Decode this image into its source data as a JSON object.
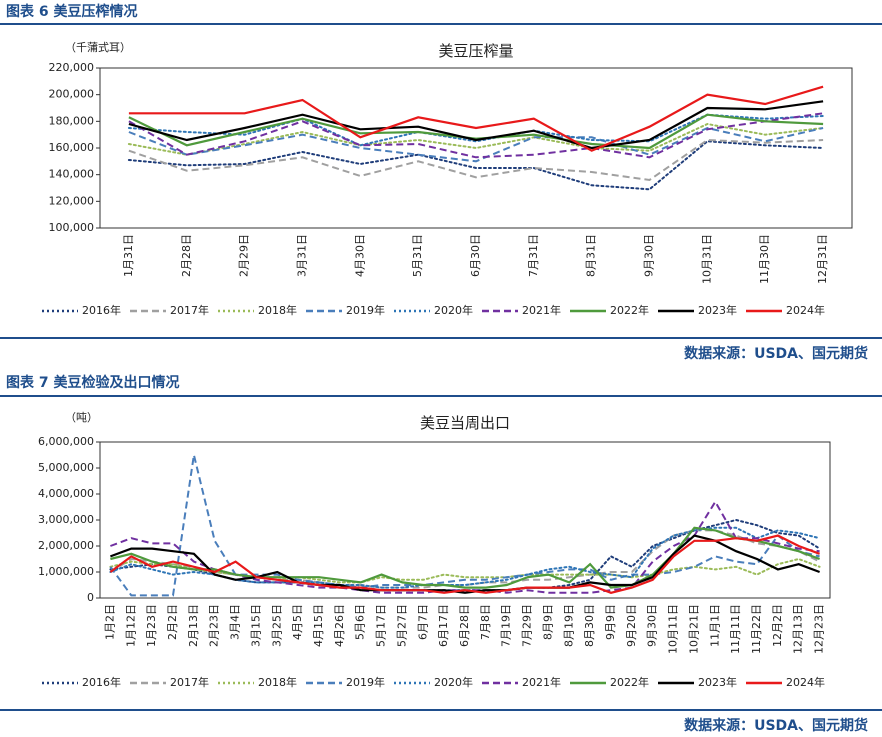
{
  "header1": "图表 6 美豆压榨情况",
  "source1": "数据来源：USDA、国元期货",
  "header2": "图表 7 美豆检验及出口情况",
  "source2": "数据来源：USDA、国元期货",
  "chart_data": [
    {
      "type": "line",
      "title": "美豆压榨量",
      "y_axis_label": "（千蒲式耳）",
      "categories": [
        "1月31日",
        "2月28日",
        "2月29日",
        "3月31日",
        "4月30日",
        "5月31日",
        "6月30日",
        "7月31日",
        "8月31日",
        "9月30日",
        "10月31日",
        "11月30日",
        "12月31日"
      ],
      "ylim": [
        100000,
        220000
      ],
      "yticks": [
        {
          "value": 100000,
          "label": "100,000"
        },
        {
          "value": 120000,
          "label": "120,000"
        },
        {
          "value": 140000,
          "label": "140,000"
        },
        {
          "value": 160000,
          "label": "160,000"
        },
        {
          "value": 180000,
          "label": "180,000"
        },
        {
          "value": 200000,
          "label": "200,000"
        },
        {
          "value": 220000,
          "label": "220,000"
        }
      ],
      "series": [
        {
          "name": "2016年",
          "color": "#1f3d7a",
          "dash": "dotted",
          "values": [
            151000,
            147000,
            148000,
            157000,
            148000,
            155000,
            145000,
            145000,
            132000,
            129000,
            165000,
            162000,
            160000
          ]
        },
        {
          "name": "2017年",
          "color": "#a0a0a0",
          "dash": "dashed",
          "values": [
            158000,
            143000,
            147000,
            153000,
            139000,
            150000,
            138000,
            145000,
            142000,
            136000,
            166000,
            164000,
            166000
          ]
        },
        {
          "name": "2018年",
          "color": "#9bbb59",
          "dash": "dotted",
          "values": [
            163000,
            155000,
            163000,
            172000,
            162000,
            166000,
            160000,
            168000,
            160000,
            158000,
            178000,
            170000,
            175000
          ]
        },
        {
          "name": "2019年",
          "color": "#4a7ebb",
          "dash": "dashed",
          "values": [
            172000,
            155000,
            162000,
            170000,
            160000,
            155000,
            150000,
            168000,
            168000,
            155000,
            175000,
            165000,
            175000
          ]
        },
        {
          "name": "2020年",
          "color": "#2e75b6",
          "dash": "dotted",
          "values": [
            175000,
            172000,
            170000,
            182000,
            162000,
            172000,
            165000,
            173000,
            166000,
            165000,
            185000,
            182000,
            184000
          ]
        },
        {
          "name": "2021年",
          "color": "#7030a0",
          "dash": "dashed",
          "values": [
            180000,
            155000,
            165000,
            180000,
            162000,
            163000,
            153000,
            155000,
            160000,
            153000,
            174000,
            180000,
            186000
          ]
        },
        {
          "name": "2022年",
          "color": "#4f9a3c",
          "dash": "solid",
          "values": [
            183000,
            162000,
            172000,
            182000,
            171000,
            172000,
            167000,
            170000,
            163000,
            160000,
            185000,
            180000,
            178000
          ]
        },
        {
          "name": "2023年",
          "color": "#000000",
          "dash": "solid",
          "values": [
            178000,
            166000,
            175000,
            185000,
            174000,
            176000,
            166000,
            173000,
            160000,
            166000,
            190000,
            189000,
            195000
          ]
        },
        {
          "name": "2024年",
          "color": "#e8191a",
          "dash": "solid",
          "values": [
            186000,
            186000,
            186000,
            196000,
            168000,
            183000,
            175000,
            182000,
            158000,
            176000,
            200000,
            193000,
            206000
          ]
        }
      ]
    },
    {
      "type": "line",
      "title": "美豆当周出口",
      "y_axis_label": "（吨）",
      "categories": [
        "1月2日",
        "1月12日",
        "1月23日",
        "2月2日",
        "2月13日",
        "2月23日",
        "3月4日",
        "3月15日",
        "3月25日",
        "4月5日",
        "4月15日",
        "4月26日",
        "5月6日",
        "5月17日",
        "5月27日",
        "6月7日",
        "6月17日",
        "6月28日",
        "7月8日",
        "7月19日",
        "7月29日",
        "8月9日",
        "8月19日",
        "8月30日",
        "9月9日",
        "9月20日",
        "9月30日",
        "10月11日",
        "10月21日",
        "11月1日",
        "11月11日",
        "11月22日",
        "12月2日",
        "12月13日",
        "12月23日"
      ],
      "ylim": [
        0,
        6000000
      ],
      "yticks": [
        0,
        {
          "value": 1000000,
          "label": "1,000,000"
        },
        {
          "value": 2000000,
          "label": "2,000,000"
        },
        {
          "value": 3000000,
          "label": "3,000,000"
        },
        {
          "value": 4000000,
          "label": "4,000,000"
        },
        {
          "value": 5000000,
          "label": "5,000,000"
        },
        {
          "value": 6000000,
          "label": "6,000,000"
        }
      ],
      "series": [
        {
          "name": "2016年",
          "color": "#1f3d7a",
          "dash": "dotted",
          "values": [
            1100000,
            1200000,
            1300000,
            1200000,
            1100000,
            900000,
            700000,
            600000,
            600000,
            600000,
            500000,
            500000,
            400000,
            300000,
            300000,
            300000,
            300000,
            300000,
            300000,
            300000,
            400000,
            400000,
            500000,
            700000,
            1600000,
            1200000,
            2000000,
            2300000,
            2600000,
            2800000,
            3000000,
            2800000,
            2500000,
            2400000,
            1900000
          ]
        },
        {
          "name": "2017年",
          "color": "#a0a0a0",
          "dash": "dashed",
          "values": [
            1000000,
            1500000,
            1400000,
            1300000,
            1200000,
            1000000,
            900000,
            800000,
            700000,
            700000,
            600000,
            500000,
            500000,
            400000,
            400000,
            400000,
            500000,
            500000,
            600000,
            600000,
            700000,
            700000,
            800000,
            900000,
            1000000,
            1000000,
            1800000,
            2400000,
            2600000,
            2600000,
            2400000,
            2100000,
            2000000,
            1800000,
            1400000
          ]
        },
        {
          "name": "2018年",
          "color": "#9bbb59",
          "dash": "dotted",
          "values": [
            1200000,
            1400000,
            1300000,
            1300000,
            1100000,
            1000000,
            900000,
            800000,
            700000,
            800000,
            700000,
            600000,
            600000,
            800000,
            700000,
            700000,
            900000,
            800000,
            800000,
            800000,
            900000,
            900000,
            900000,
            900000,
            900000,
            800000,
            900000,
            1100000,
            1200000,
            1100000,
            1200000,
            900000,
            1300000,
            1500000,
            1200000
          ]
        },
        {
          "name": "2019年",
          "color": "#4a7ebb",
          "dash": "dashed",
          "values": [
            1200000,
            100000,
            100000,
            100000,
            5500000,
            2200000,
            900000,
            900000,
            900000,
            700000,
            600000,
            500000,
            400000,
            500000,
            500000,
            500000,
            600000,
            700000,
            700000,
            800000,
            900000,
            1000000,
            1100000,
            1100000,
            700000,
            900000,
            900000,
            1000000,
            1200000,
            1600000,
            1400000,
            1300000,
            2400000,
            1800000,
            1600000
          ]
        },
        {
          "name": "2020年",
          "color": "#2e75b6",
          "dash": "dotted",
          "values": [
            1000000,
            1300000,
            1100000,
            900000,
            1000000,
            900000,
            700000,
            600000,
            600000,
            600000,
            600000,
            500000,
            500000,
            400000,
            400000,
            500000,
            500000,
            500000,
            600000,
            700000,
            900000,
            1100000,
            1200000,
            1000000,
            900000,
            800000,
            1900000,
            2400000,
            2600000,
            2700000,
            2700000,
            2300000,
            2600000,
            2500000,
            2300000
          ]
        },
        {
          "name": "2021年",
          "color": "#7030a0",
          "dash": "dashed",
          "values": [
            2000000,
            2300000,
            2100000,
            2100000,
            1400000,
            1100000,
            900000,
            700000,
            600000,
            500000,
            400000,
            400000,
            300000,
            200000,
            200000,
            200000,
            300000,
            300000,
            300000,
            200000,
            300000,
            200000,
            200000,
            200000,
            300000,
            400000,
            1400000,
            2000000,
            2400000,
            3700000,
            2300000,
            2300000,
            2100000,
            1900000,
            1800000
          ]
        },
        {
          "name": "2022年",
          "color": "#4f9a3c",
          "dash": "solid",
          "values": [
            1500000,
            1700000,
            1400000,
            1200000,
            1100000,
            1100000,
            900000,
            800000,
            800000,
            800000,
            800000,
            700000,
            600000,
            900000,
            600000,
            500000,
            500000,
            400000,
            400000,
            500000,
            800000,
            900000,
            600000,
            1300000,
            400000,
            500000,
            900000,
            1700000,
            2700000,
            2600000,
            2300000,
            2200000,
            2000000,
            1800000,
            1500000
          ]
        },
        {
          "name": "2023年",
          "color": "#000000",
          "dash": "solid",
          "values": [
            1600000,
            1900000,
            1900000,
            1800000,
            1700000,
            900000,
            700000,
            800000,
            1000000,
            600000,
            500000,
            500000,
            300000,
            300000,
            300000,
            300000,
            300000,
            200000,
            300000,
            300000,
            400000,
            400000,
            400000,
            600000,
            500000,
            500000,
            800000,
            1700000,
            2400000,
            2200000,
            1800000,
            1500000,
            1100000,
            1300000,
            1000000
          ]
        },
        {
          "name": "2024年",
          "color": "#e8191a",
          "dash": "solid",
          "values": [
            1000000,
            1600000,
            1200000,
            1400000,
            1200000,
            1000000,
            1400000,
            800000,
            700000,
            600000,
            500000,
            400000,
            400000,
            300000,
            300000,
            300000,
            200000,
            300000,
            200000,
            300000,
            400000,
            400000,
            400000,
            500000,
            200000,
            400000,
            700000,
            1600000,
            2200000,
            2200000,
            2300000,
            2200000,
            2400000,
            2000000,
            1700000
          ]
        }
      ]
    }
  ]
}
